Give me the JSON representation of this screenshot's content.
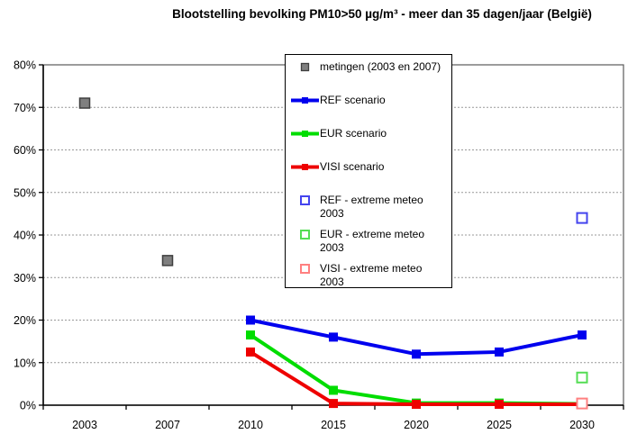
{
  "chart_data": {
    "type": "line",
    "title": "Blootstelling bevolking PM10>50 µg/m³ - meer dan 35 dagen/jaar (België)",
    "categories": [
      "2003",
      "2007",
      "2010",
      "2015",
      "2020",
      "2025",
      "2030"
    ],
    "y_ticks": [
      "0%",
      "10%",
      "20%",
      "30%",
      "40%",
      "50%",
      "60%",
      "70%",
      "80%"
    ],
    "ylim": [
      0,
      80
    ],
    "grid": "horizontal-dashed",
    "legend_position": "top-center-overlay",
    "series": [
      {
        "name": "metingen (2003 en 2007)",
        "type": "scatter",
        "marker": "filled-square",
        "color": "#7f7f7f",
        "border_color": "#3f3f3f",
        "points": [
          {
            "x": "2003",
            "y": 71
          },
          {
            "x": "2007",
            "y": 34
          }
        ]
      },
      {
        "name": "REF scenario",
        "type": "line",
        "color": "#0000ee",
        "x": [
          "2010",
          "2015",
          "2020",
          "2025",
          "2030"
        ],
        "values": [
          20,
          16,
          12,
          12.5,
          16.5
        ]
      },
      {
        "name": "EUR scenario",
        "type": "line",
        "color": "#00dd00",
        "x": [
          "2010",
          "2015",
          "2020",
          "2025",
          "2030"
        ],
        "values": [
          16.5,
          3.5,
          0.5,
          0.5,
          0.3
        ]
      },
      {
        "name": "VISI scenario",
        "type": "line",
        "color": "#ee0000",
        "x": [
          "2010",
          "2015",
          "2020",
          "2025",
          "2030"
        ],
        "values": [
          12.5,
          0.4,
          0.2,
          0.2,
          0.2
        ]
      },
      {
        "name": "REF - extreme meteo 2003",
        "type": "scatter",
        "marker": "open-square",
        "color": "#4444ee",
        "points": [
          {
            "x": "2030",
            "y": 44
          }
        ]
      },
      {
        "name": "EUR - extreme meteo 2003",
        "type": "scatter",
        "marker": "open-square",
        "color": "#55dd55",
        "points": [
          {
            "x": "2030",
            "y": 6.5
          }
        ]
      },
      {
        "name": "VISI - extreme meteo 2003",
        "type": "scatter",
        "marker": "open-square",
        "color": "#ff8080",
        "points": [
          {
            "x": "2030",
            "y": 0.4
          }
        ]
      }
    ],
    "legend": [
      {
        "lines": [
          "metingen (2003 en 2007)"
        ],
        "marker": "filled-square",
        "color": "#7f7f7f",
        "border_color": "#3f3f3f"
      },
      {
        "lines": [
          "REF scenario"
        ],
        "marker": "line",
        "color": "#0000ee"
      },
      {
        "lines": [
          "EUR scenario"
        ],
        "marker": "line",
        "color": "#00dd00"
      },
      {
        "lines": [
          "VISI scenario"
        ],
        "marker": "line",
        "color": "#ee0000"
      },
      {
        "lines": [
          "REF - extreme meteo",
          "2003"
        ],
        "marker": "open-square",
        "color": "#4444ee"
      },
      {
        "lines": [
          "EUR - extreme meteo",
          "2003"
        ],
        "marker": "open-square",
        "color": "#55dd55"
      },
      {
        "lines": [
          "VISI - extreme meteo",
          "2003"
        ],
        "marker": "open-square",
        "color": "#ff8080"
      }
    ],
    "colors": {
      "gridline": "#999999",
      "axis": "#000000",
      "plot_border": "#595959"
    }
  }
}
